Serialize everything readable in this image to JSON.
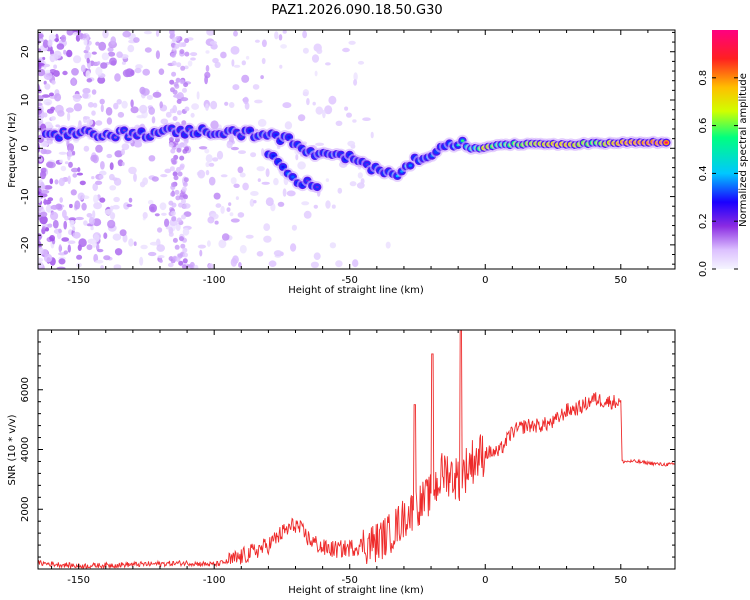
{
  "title": "PAZ1.2026.090.18.50.G30",
  "colors": {
    "trace": "#ee2a2a",
    "track_core": "#ff1a1a",
    "noise": "#8a2be2",
    "background": "#ffffff"
  },
  "chart_data": [
    {
      "type": "heatmap",
      "name": "spectrogram",
      "xlabel": "Height of straight line (km)",
      "ylabel": "Frequency (Hz)",
      "xlim": [
        -165,
        70
      ],
      "ylim": [
        -25,
        24.5
      ],
      "xticks": [
        "-150",
        "-100",
        "-50",
        "0",
        "50"
      ],
      "xtick_values": [
        -150,
        -100,
        -50,
        0,
        50
      ],
      "yticks": [
        "20",
        "10",
        "0",
        "-10",
        "-20"
      ],
      "ytick_values": [
        20,
        10,
        0,
        -10,
        -20
      ],
      "colorbar": {
        "label": "Normalized spectral amplitude",
        "range": [
          0,
          1
        ],
        "ticks": [
          "0.0",
          "0.2",
          "0.4",
          "0.6",
          "0.8"
        ],
        "tick_values": [
          0.0,
          0.2,
          0.4,
          0.6,
          0.8
        ],
        "colormap": [
          "#f5f5ff",
          "#dcc0ff",
          "#8a2be2",
          "#1a00ff",
          "#00c8ff",
          "#00ff80",
          "#d0ff00",
          "#ffbf00",
          "#ff2020",
          "#ff0080"
        ]
      },
      "track_points": [
        {
          "x": -162,
          "y": 2.5,
          "a": 0.3
        },
        {
          "x": -150,
          "y": 3.0,
          "a": 0.22
        },
        {
          "x": -135,
          "y": 3.0,
          "a": 0.2
        },
        {
          "x": -125,
          "y": 3.0,
          "a": 0.3
        },
        {
          "x": -115,
          "y": 3.5,
          "a": 0.25
        },
        {
          "x": -100,
          "y": 3.5,
          "a": 0.3
        },
        {
          "x": -90,
          "y": 3.0,
          "a": 0.3
        },
        {
          "x": -80,
          "y": 3.0,
          "a": 0.35
        },
        {
          "x": -72,
          "y": 1.5,
          "a": 0.3
        },
        {
          "x": -65,
          "y": -1.0,
          "a": 0.35
        },
        {
          "x": -58,
          "y": -1.5,
          "a": 0.35
        },
        {
          "x": -50,
          "y": -2.0,
          "a": 0.3
        },
        {
          "x": -45,
          "y": -3.5,
          "a": 0.3
        },
        {
          "x": -38,
          "y": -4.5,
          "a": 0.35
        },
        {
          "x": -32,
          "y": -5.0,
          "a": 0.45
        },
        {
          "x": -27,
          "y": -3.0,
          "a": 0.4
        },
        {
          "x": -20,
          "y": -1.0,
          "a": 0.35
        },
        {
          "x": -13,
          "y": 0.5,
          "a": 0.4
        },
        {
          "x": -8,
          "y": 1.0,
          "a": 0.55
        },
        {
          "x": -3,
          "y": 0.5,
          "a": 0.6
        },
        {
          "x": 0,
          "y": 0.5,
          "a": 0.85
        },
        {
          "x": 5,
          "y": 0.5,
          "a": 0.6
        },
        {
          "x": 10,
          "y": 0.8,
          "a": 0.7
        },
        {
          "x": 20,
          "y": 1.0,
          "a": 0.8
        },
        {
          "x": 30,
          "y": 0.8,
          "a": 0.85
        },
        {
          "x": 40,
          "y": 1.0,
          "a": 0.7
        },
        {
          "x": 50,
          "y": 1.2,
          "a": 0.9
        },
        {
          "x": 60,
          "y": 1.2,
          "a": 0.95
        },
        {
          "x": 68,
          "y": 1.2,
          "a": 0.95
        }
      ],
      "branch_points": [
        {
          "x": -80,
          "y": -1.0,
          "a": 0.35
        },
        {
          "x": -76,
          "y": -3.0,
          "a": 0.35
        },
        {
          "x": -72,
          "y": -5.5,
          "a": 0.35
        },
        {
          "x": -68,
          "y": -7.0,
          "a": 0.3
        },
        {
          "x": -62,
          "y": -7.5,
          "a": 0.3
        }
      ]
    },
    {
      "type": "line",
      "name": "snr",
      "xlabel": "Height of straight line (km)",
      "ylabel": "SNR (10 * v/v)",
      "xlim": [
        -165,
        70
      ],
      "ylim": [
        0,
        8000
      ],
      "xticks": [
        "-150",
        "-100",
        "-50",
        "0",
        "50"
      ],
      "xtick_values": [
        -150,
        -100,
        -50,
        0,
        50
      ],
      "yticks": [
        "2000",
        "4000",
        "6000"
      ],
      "ytick_values": [
        2000,
        4000,
        6000
      ],
      "series": [
        {
          "name": "SNR",
          "x": [
            -165,
            -150,
            -130,
            -110,
            -100,
            -95,
            -90,
            -80,
            -75,
            -70,
            -65,
            -60,
            -55,
            -50,
            -45,
            -40,
            -35,
            -30,
            -25,
            -20,
            -15,
            -10,
            -5,
            0,
            5,
            10,
            15,
            20,
            25,
            30,
            35,
            40,
            45,
            50,
            50.5,
            55,
            60,
            65,
            70
          ],
          "y": [
            200,
            100,
            150,
            200,
            150,
            250,
            400,
            800,
            1200,
            1500,
            1000,
            700,
            650,
            700,
            800,
            900,
            1200,
            1700,
            2100,
            2500,
            3300,
            3000,
            3600,
            3900,
            3900,
            4600,
            4800,
            4800,
            4900,
            5300,
            5400,
            5700,
            5600,
            5600,
            3600,
            3600,
            3550,
            3500,
            3500
          ]
        }
      ]
    }
  ]
}
